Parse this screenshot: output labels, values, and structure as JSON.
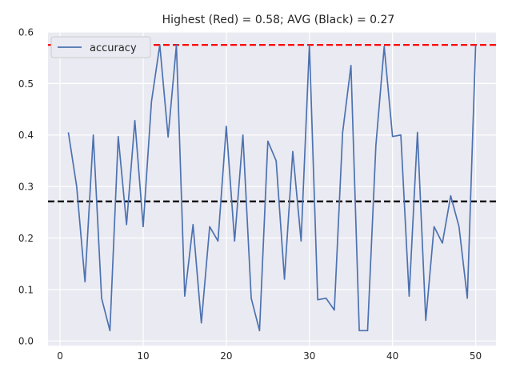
{
  "chart_data": {
    "type": "line",
    "title": "Highest (Red) = 0.58; AVG (Black) = 0.27",
    "xlabel": "",
    "ylabel": "",
    "xlim": [
      -1.45,
      52.45
    ],
    "ylim": [
      -0.009,
      0.6
    ],
    "xticks": [
      0,
      10,
      20,
      30,
      40,
      50
    ],
    "yticks": [
      0.0,
      0.1,
      0.2,
      0.3,
      0.4,
      0.5,
      0.6
    ],
    "ytick_labels": [
      "0.0",
      "0.1",
      "0.2",
      "0.3",
      "0.4",
      "0.5",
      "0.6"
    ],
    "grid": true,
    "legend_position": "top-left",
    "series": [
      {
        "name": "accuracy",
        "color": "#4c72b0",
        "x": [
          1,
          2,
          3,
          4,
          5,
          6,
          7,
          8,
          9,
          10,
          11,
          12,
          13,
          14,
          15,
          16,
          17,
          18,
          19,
          20,
          21,
          22,
          23,
          24,
          25,
          26,
          27,
          28,
          29,
          30,
          31,
          32,
          33,
          34,
          35,
          36,
          37,
          38,
          39,
          40,
          41,
          42,
          43,
          44,
          45,
          46,
          47,
          48,
          49,
          50
        ],
        "values": [
          0.405,
          0.3,
          0.115,
          0.4,
          0.083,
          0.02,
          0.397,
          0.226,
          0.428,
          0.222,
          0.465,
          0.575,
          0.396,
          0.575,
          0.087,
          0.226,
          0.035,
          0.222,
          0.194,
          0.417,
          0.194,
          0.4,
          0.083,
          0.02,
          0.388,
          0.35,
          0.12,
          0.368,
          0.194,
          0.575,
          0.08,
          0.083,
          0.06,
          0.405,
          0.535,
          0.02,
          0.02,
          0.38,
          0.572,
          0.397,
          0.4,
          0.087,
          0.405,
          0.04,
          0.222,
          0.19,
          0.282,
          0.222,
          0.083,
          0.575
        ]
      }
    ],
    "reference_lines": [
      {
        "label": "Highest",
        "value": 0.575,
        "color": "#ff0000",
        "style": "dashed"
      },
      {
        "label": "AVG",
        "value": 0.271,
        "color": "#000000",
        "style": "dashed"
      }
    ],
    "colors": {
      "background": "#eaeaf2",
      "grid": "#ffffff",
      "text": "#262626"
    }
  }
}
